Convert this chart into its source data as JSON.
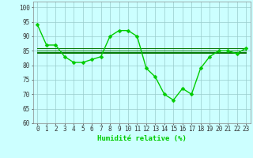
{
  "x": [
    0,
    1,
    2,
    3,
    4,
    5,
    6,
    7,
    8,
    9,
    10,
    11,
    12,
    13,
    14,
    15,
    16,
    17,
    18,
    19,
    20,
    21,
    22,
    23
  ],
  "y_main": [
    94,
    87,
    87,
    83,
    81,
    81,
    82,
    83,
    90,
    92,
    92,
    90,
    79,
    76,
    70,
    68,
    72,
    70,
    79,
    83,
    85,
    85,
    84,
    86
  ],
  "y_mean1": [
    85.0,
    85.0,
    85.0,
    85.0,
    85.0,
    85.0,
    85.0,
    85.0,
    85.0,
    85.0,
    85.0,
    85.0,
    85.0,
    85.0,
    85.0,
    85.0,
    85.0,
    85.0,
    85.0,
    85.0,
    85.0,
    85.0,
    85.0,
    85.0
  ],
  "y_mean2": [
    84.2,
    84.2,
    84.2,
    84.2,
    84.2,
    84.2,
    84.2,
    84.2,
    84.2,
    84.2,
    84.2,
    84.2,
    84.2,
    84.2,
    84.2,
    84.2,
    84.2,
    84.2,
    84.2,
    84.2,
    84.2,
    84.2,
    84.2,
    84.2
  ],
  "y_mean3": [
    85.8,
    85.8,
    85.8,
    85.8,
    85.8,
    85.8,
    85.8,
    85.8,
    85.8,
    85.8,
    85.8,
    85.8,
    85.8,
    85.8,
    85.8,
    85.8,
    85.8,
    85.8,
    85.8,
    85.8,
    85.8,
    85.8,
    85.8,
    85.8
  ],
  "y_mean4": [
    84.6,
    84.6,
    84.6,
    84.6,
    84.6,
    84.6,
    84.6,
    84.6,
    84.6,
    84.6,
    84.6,
    84.6,
    84.6,
    84.6,
    84.6,
    84.6,
    84.6,
    84.6,
    84.6,
    84.6,
    84.6,
    84.6,
    84.6,
    84.6
  ],
  "line_color": "#00cc00",
  "mean_color": "#007700",
  "bg_color": "#ccffff",
  "grid_color": "#99cccc",
  "xlabel": "Humidité relative (%)",
  "ylim": [
    60,
    102
  ],
  "yticks": [
    60,
    65,
    70,
    75,
    80,
    85,
    90,
    95,
    100
  ],
  "xticks": [
    0,
    1,
    2,
    3,
    4,
    5,
    6,
    7,
    8,
    9,
    10,
    11,
    12,
    13,
    14,
    15,
    16,
    17,
    18,
    19,
    20,
    21,
    22,
    23
  ],
  "xlabel_fontsize": 6.5,
  "tick_fontsize": 5.5,
  "line_width": 1.0,
  "marker_size": 2.5
}
